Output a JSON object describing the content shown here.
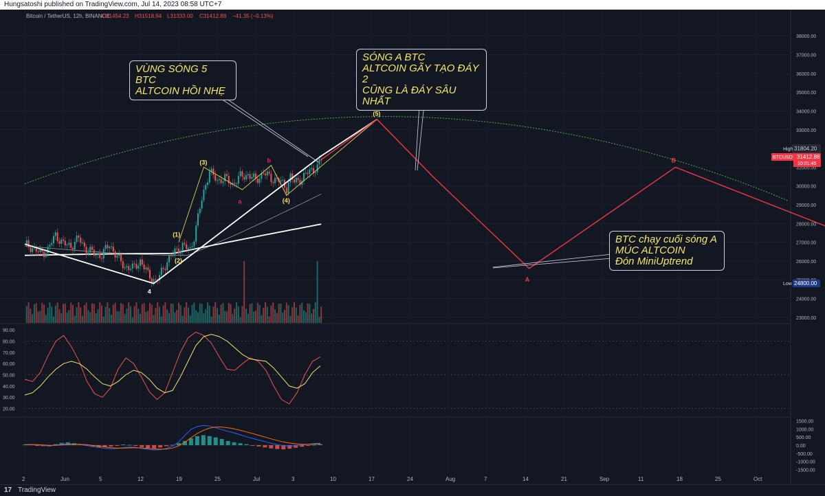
{
  "header": {
    "publisher_line": "Hungsatoshi published on TradingView.com, Jul 14, 2023 08:58 UTC+7"
  },
  "legend": {
    "symbol": "Bitcoin / TetherUS, 12h, BINANCE",
    "open": "O31454.23",
    "high": "H31518.94",
    "low": "L31333.00",
    "close": "C31412.88",
    "change": "−41.35 (−0.13%)"
  },
  "price_tags": {
    "high_label": "High",
    "high_value": "31804.20",
    "symbol": "BTCUSDT",
    "last_value": "31412.88",
    "countdown": "10:01:45",
    "low_label": "Low",
    "low_value": "24800.00"
  },
  "callouts": {
    "wave5": "VÙNG SÓNG 5 BTC\nALTCOIN HỒI NHẸ",
    "waveA": "SÓNG A BTC\nALTCOIN GÃY TẠO ĐÁY 2\nCŨNG LÀ ĐÁY SÂU NHẤT",
    "endA": "BTC chạy cuối sóng A\nMÚC ALTCOIN\nĐón MiniUptrend"
  },
  "footer": {
    "logo": "17",
    "brand": "TradingView"
  },
  "colors": {
    "bg": "#131722",
    "up": "#26a69a",
    "down": "#ef5350",
    "projection": "#f23645",
    "fib": "#f5e66b",
    "curve": "#4caf50"
  },
  "chart_data": [
    {
      "type": "candlestick",
      "panel": "price",
      "y_axis": {
        "ticks": [
          23000,
          24000,
          25000,
          26000,
          27000,
          28000,
          29000,
          30000,
          31000,
          32000,
          33000,
          34000,
          35000,
          36000,
          37000,
          38000
        ],
        "tick_labels": [
          "23000.00",
          "24000.00",
          "25000.00",
          "26000.00",
          "27000.00",
          "28000.00",
          "29000.00",
          "30000.00",
          "31000.00",
          "32000.00",
          "33000.00",
          "34000.00",
          "35000.00",
          "36000.00",
          "37000.00",
          "38000.00"
        ],
        "range": [
          22700,
          39400
        ]
      },
      "x_axis": {
        "labels": [
          "2",
          "Jun",
          "5",
          "12",
          "19",
          "25",
          "Jul",
          "3",
          "10",
          "17",
          "24",
          "Aug",
          "7",
          "14",
          "21",
          "Sep",
          "11",
          "18",
          "25",
          "Oct"
        ]
      },
      "price_path": [
        [
          0,
          26900
        ],
        [
          4,
          26700
        ],
        [
          8,
          26400
        ],
        [
          12,
          26600
        ],
        [
          16,
          27400
        ],
        [
          20,
          26900
        ],
        [
          24,
          26800
        ],
        [
          28,
          27200
        ],
        [
          32,
          26600
        ],
        [
          36,
          26400
        ],
        [
          40,
          26300
        ],
        [
          44,
          26900
        ],
        [
          48,
          26200
        ],
        [
          52,
          25700
        ],
        [
          56,
          25600
        ],
        [
          60,
          26000
        ],
        [
          64,
          25300
        ],
        [
          68,
          24900
        ],
        [
          70,
          25200
        ],
        [
          74,
          26000
        ],
        [
          78,
          26500
        ],
        [
          82,
          26800
        ],
        [
          86,
          26600
        ],
        [
          88,
          27300
        ],
        [
          90,
          28300
        ],
        [
          92,
          29300
        ],
        [
          94,
          30100
        ],
        [
          96,
          30800
        ],
        [
          98,
          30500
        ],
        [
          100,
          30300
        ],
        [
          104,
          30400
        ],
        [
          108,
          30100
        ],
        [
          112,
          30500
        ],
        [
          116,
          30600
        ],
        [
          120,
          30300
        ],
        [
          124,
          30700
        ],
        [
          128,
          30400
        ],
        [
          132,
          30300
        ],
        [
          136,
          29900
        ],
        [
          138,
          30500
        ],
        [
          140,
          30200
        ],
        [
          144,
          30400
        ],
        [
          148,
          30800
        ],
        [
          152,
          31000
        ],
        [
          154,
          31400
        ]
      ],
      "wave_labels": [
        "(1)",
        "(2)",
        "(3)",
        "(4)",
        "(5)",
        "4",
        "a",
        "b",
        "A",
        "B"
      ],
      "projection_path": [
        [
          154,
          31400
        ],
        [
          183,
          33550
        ],
        [
          212,
          30500
        ],
        [
          262,
          25600
        ],
        [
          338,
          31000
        ],
        [
          420,
          27700
        ]
      ],
      "ma_fast_end": 29200,
      "ma_slow_end": 27950
    },
    {
      "type": "line",
      "panel": "oscillator",
      "y_axis": {
        "ticks": [
          20,
          30,
          40,
          50,
          60,
          70,
          80,
          90
        ],
        "tick_labels": [
          "20.00",
          "30.00",
          "40.00",
          "50.00",
          "60.00",
          "70.00",
          "80.00",
          "90.00"
        ],
        "range": [
          13,
          95
        ],
        "bands": [
          20,
          50,
          80
        ]
      },
      "series": [
        {
          "color": "#ef5350",
          "values": [
            46,
            44,
            52,
            67,
            80,
            85,
            75,
            62,
            44,
            33,
            30,
            38,
            55,
            65,
            60,
            48,
            35,
            28,
            34,
            52,
            70,
            83,
            88,
            85,
            78,
            66,
            55,
            54,
            60,
            65,
            62,
            54,
            40,
            28,
            24,
            34,
            50,
            62,
            66
          ]
        },
        {
          "color": "#f5e66b",
          "values": [
            32,
            34,
            40,
            48,
            55,
            60,
            62,
            60,
            55,
            48,
            42,
            40,
            44,
            50,
            54,
            52,
            46,
            38,
            34,
            36,
            48,
            62,
            76,
            84,
            86,
            84,
            80,
            74,
            68,
            64,
            63,
            62,
            56,
            48,
            40,
            38,
            42,
            52,
            58
          ]
        }
      ]
    },
    {
      "type": "histogram",
      "panel": "macd",
      "y_axis": {
        "ticks": [
          -1500,
          -1000,
          -500,
          0,
          500,
          1000,
          1500
        ],
        "tick_labels": [
          "-1500.00",
          "-1000.00",
          "-500.00",
          "0.00",
          "500.00",
          "1000.00",
          "1500.00"
        ],
        "range": [
          -1700,
          1700
        ]
      },
      "histogram": [
        40,
        60,
        -20,
        -60,
        -80,
        60,
        140,
        180,
        120,
        60,
        -40,
        -100,
        -140,
        -120,
        -80,
        -20,
        40,
        20,
        -40,
        -120,
        -180,
        -200,
        -140,
        -60,
        20,
        120,
        260,
        420,
        560,
        620,
        560,
        480,
        380,
        260,
        180,
        120,
        60,
        -20,
        -80,
        -140,
        -200,
        -240,
        -260,
        -220,
        -160,
        -100,
        -40,
        20,
        60
      ],
      "macd_line": [
        20,
        40,
        30,
        -20,
        -40,
        0,
        60,
        90,
        70,
        40,
        -20,
        -80,
        -140,
        -200,
        -220,
        -200,
        -160,
        -120,
        -140,
        -200,
        -260,
        -300,
        -280,
        -200,
        -60,
        200,
        600,
        980,
        1150,
        1220,
        1180,
        1080,
        960,
        860,
        760,
        640,
        520,
        420,
        320,
        220,
        120,
        40,
        -30,
        -60,
        -40,
        10,
        60,
        100,
        120
      ],
      "signal_line": [
        30,
        35,
        30,
        10,
        -10,
        -10,
        10,
        40,
        50,
        50,
        30,
        -10,
        -60,
        -110,
        -160,
        -180,
        -180,
        -170,
        -160,
        -170,
        -200,
        -230,
        -250,
        -240,
        -180,
        -40,
        180,
        460,
        720,
        920,
        1060,
        1120,
        1120,
        1080,
        1010,
        920,
        820,
        720,
        610,
        500,
        390,
        290,
        200,
        130,
        80,
        50,
        50,
        60,
        80
      ]
    }
  ]
}
